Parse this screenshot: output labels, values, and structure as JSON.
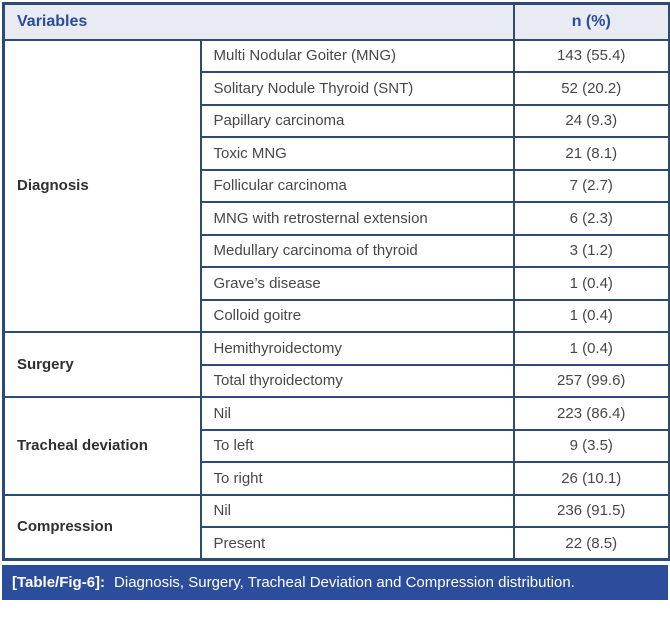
{
  "table": {
    "header": {
      "variables": "Variables",
      "n_percent": "n (%)"
    },
    "sections": [
      {
        "label": "Diagnosis",
        "rows": [
          {
            "item": "Multi Nodular Goiter (MNG)",
            "value": "143 (55.4)"
          },
          {
            "item": "Solitary Nodule Thyroid (SNT)",
            "value": "52 (20.2)"
          },
          {
            "item": "Papillary carcinoma",
            "value": "24 (9.3)"
          },
          {
            "item": "Toxic MNG",
            "value": "21 (8.1)"
          },
          {
            "item": "Follicular carcinoma",
            "value": "7 (2.7)"
          },
          {
            "item": "MNG with retrosternal extension",
            "value": "6 (2.3)"
          },
          {
            "item": "Medullary carcinoma of thyroid",
            "value": "3 (1.2)"
          },
          {
            "item": "Grave’s disease",
            "value": "1 (0.4)"
          },
          {
            "item": "Colloid goitre",
            "value": "1 (0.4)"
          }
        ]
      },
      {
        "label": "Surgery",
        "rows": [
          {
            "item": "Hemithyroidectomy",
            "value": "1 (0.4)"
          },
          {
            "item": "Total thyroidectomy",
            "value": "257 (99.6)"
          }
        ]
      },
      {
        "label": "Tracheal deviation",
        "rows": [
          {
            "item": "Nil",
            "value": "223 (86.4)"
          },
          {
            "item": "To left",
            "value": "9 (3.5)"
          },
          {
            "item": "To right",
            "value": "26 (10.1)"
          }
        ]
      },
      {
        "label": "Compression",
        "rows": [
          {
            "item": "Nil",
            "value": "236 (91.5)"
          },
          {
            "item": "Present",
            "value": "22 (8.5)"
          }
        ]
      }
    ]
  },
  "caption": {
    "tag": "[Table/Fig-6]:",
    "text": "Diagnosis, Surgery, Tracheal Deviation and Compression distribution."
  },
  "colors": {
    "border_navy": "#2c4a72",
    "header_bg": "#e9ebf2",
    "header_text": "#2b4c9c",
    "body_text": "#474747",
    "caption_bg": "#2b4d9b",
    "caption_text": "#ffffff"
  }
}
